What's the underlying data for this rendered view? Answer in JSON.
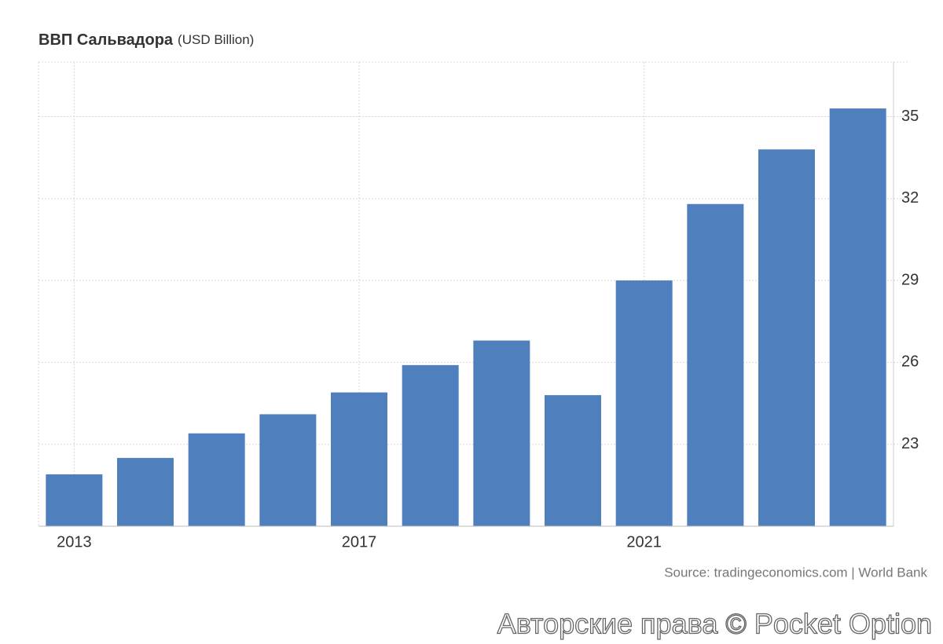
{
  "chart_data": {
    "type": "bar",
    "title": "ВВП Сальвадора",
    "subtitle": "(USD Billion)",
    "source": "Source: tradingeconomics.com | World Bank",
    "watermark": "Авторские права © Pocket Option",
    "categories": [
      "2013",
      null,
      null,
      null,
      "2017",
      null,
      null,
      null,
      "2021",
      null,
      null,
      null
    ],
    "values": [
      21.9,
      22.5,
      23.4,
      24.1,
      24.9,
      25.9,
      26.8,
      24.8,
      29.0,
      31.8,
      33.8,
      35.3
    ],
    "color": "#4f7fbd",
    "ylim": [
      20,
      37
    ],
    "yticks": [
      23,
      26,
      29,
      32,
      35
    ],
    "grid": true
  }
}
